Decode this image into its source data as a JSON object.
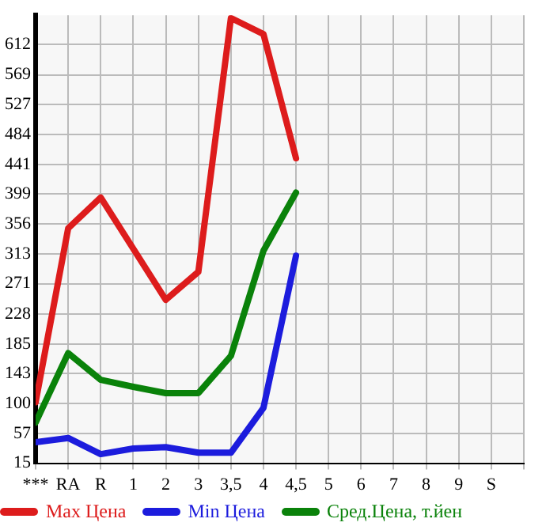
{
  "chart_data": {
    "type": "line",
    "categories": [
      "***",
      "RA",
      "R",
      "1",
      "2",
      "3",
      "3,5",
      "4",
      "4,5",
      "5",
      "6",
      "7",
      "8",
      "9",
      "S"
    ],
    "series": [
      {
        "name": "Max Цена",
        "color": "#dd1c1c",
        "values": [
          102,
          350,
          394,
          321,
          248,
          288,
          650,
          627,
          450,
          null,
          null,
          null,
          null,
          null,
          null
        ]
      },
      {
        "name": "Min Цена",
        "color": "#1c1cdd",
        "values": [
          45,
          51,
          28,
          36,
          38,
          30,
          30,
          94,
          311,
          null,
          null,
          null,
          null,
          null,
          null
        ]
      },
      {
        "name": "Сред.Цена, т.йен",
        "color": "#0a820a",
        "values": [
          73,
          172,
          134,
          124,
          115,
          115,
          168,
          318,
          401,
          null,
          null,
          null,
          null,
          null,
          null
        ]
      }
    ],
    "ylim": [
      15,
      654
    ],
    "yticks": [
      15,
      57,
      100,
      143,
      185,
      228,
      271,
      313,
      356,
      399,
      441,
      484,
      527,
      569,
      612
    ],
    "grid": true,
    "legend": "bottom",
    "marker": "none",
    "line_style": "solid"
  }
}
